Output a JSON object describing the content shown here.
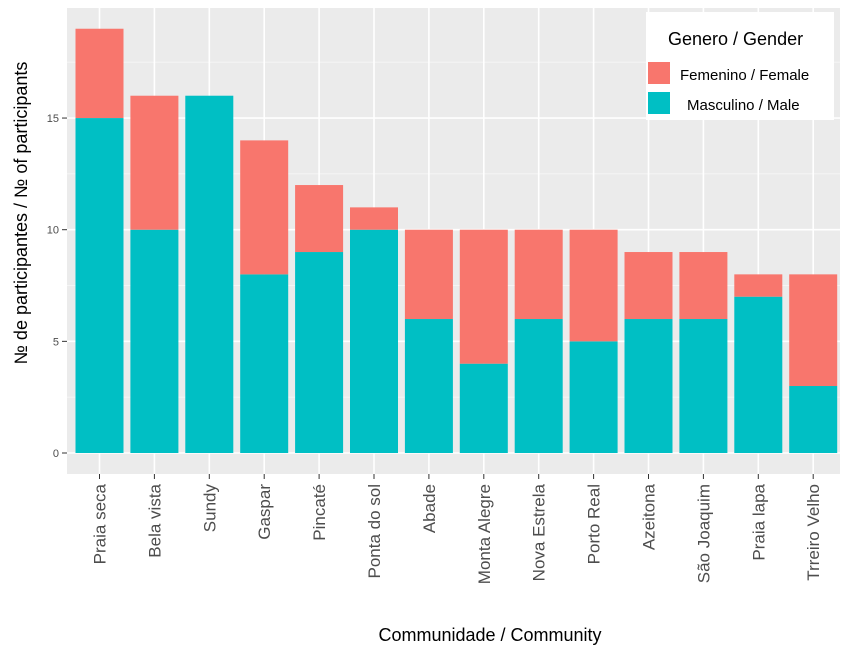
{
  "chart_data": {
    "type": "bar",
    "stacked": true,
    "categories": [
      "Praia seca",
      "Bela vista",
      "Sundy",
      "Gaspar",
      "Pincaté",
      "Ponta do sol",
      "Abade",
      "Monta Alegre",
      "Nova Estrela",
      "Porto Real",
      "Azeitona",
      "São Joaquim",
      "Praia lapa",
      "Trreiro Velho"
    ],
    "series": [
      {
        "name": "Masculino / Male",
        "color": "#00BFC4",
        "values": [
          15,
          10,
          16,
          8,
          9,
          10,
          6,
          4,
          6,
          5,
          6,
          6,
          7,
          3
        ]
      },
      {
        "name": "Femenino / Female",
        "color": "#F8766D",
        "values": [
          4,
          6,
          0,
          6,
          3,
          1,
          4,
          6,
          4,
          5,
          3,
          3,
          1,
          5
        ]
      }
    ],
    "xlabel": "Communidade / Community",
    "ylabel": "№ de participantes / № of participants",
    "ylim": [
      0,
      19
    ],
    "yticks": [
      0,
      5,
      10,
      15
    ],
    "grid": true,
    "legend": {
      "title": "Genero / Gender",
      "position": "top-right",
      "items": [
        {
          "label": "Femenino / Female",
          "color": "#F8766D"
        },
        {
          "label": "Masculino / Male",
          "color": "#00BFC4"
        }
      ]
    },
    "panel_background": "#EBEBEB",
    "grid_color": "#FFFFFF"
  }
}
